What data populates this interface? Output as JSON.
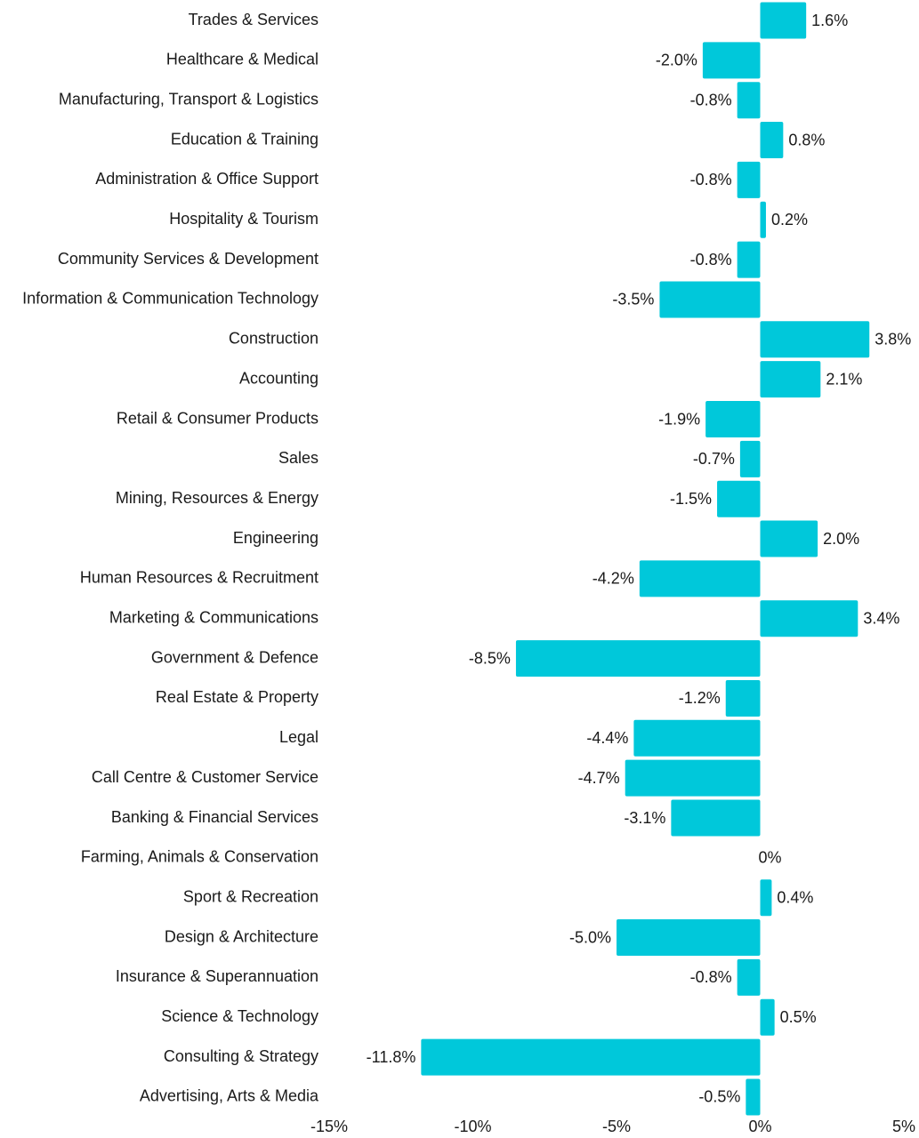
{
  "chart_data": {
    "type": "bar",
    "orientation": "horizontal",
    "title": "",
    "xlabel": "",
    "ylabel": "",
    "xlim": [
      -15,
      5
    ],
    "grid": false,
    "legend": "none",
    "bar_color": "#00C8DA",
    "value_suffix": "%",
    "categories": [
      "Trades & Services",
      "Healthcare & Medical",
      "Manufacturing, Transport & Logistics",
      "Education & Training",
      "Administration & Office Support",
      "Hospitality & Tourism",
      "Community Services & Development",
      "Information & Communication Technology",
      "Construction",
      "Accounting",
      "Retail & Consumer Products",
      "Sales",
      "Mining, Resources & Energy",
      "Engineering",
      "Human Resources & Recruitment",
      "Marketing & Communications",
      "Government & Defence",
      "Real Estate & Property",
      "Legal",
      "Call Centre & Customer Service",
      "Banking & Financial Services",
      "Farming, Animals & Conservation",
      "Sport & Recreation",
      "Design & Architecture",
      "Insurance & Superannuation",
      "Science & Technology",
      "Consulting & Strategy",
      "Advertising, Arts & Media"
    ],
    "values": [
      1.6,
      -2.0,
      -0.8,
      0.8,
      -0.8,
      0.2,
      -0.8,
      -3.5,
      3.8,
      2.1,
      -1.9,
      -0.7,
      -1.5,
      2.0,
      -4.2,
      3.4,
      -8.5,
      -1.2,
      -4.4,
      -4.7,
      -3.1,
      0,
      0.4,
      -5.0,
      -0.8,
      0.5,
      -11.8,
      -0.5
    ],
    "data_labels": [
      "1.6%",
      "-2.0%",
      "-0.8%",
      "0.8%",
      "-0.8%",
      "0.2%",
      "-0.8%",
      "-3.5%",
      "3.8%",
      "2.1%",
      "-1.9%",
      "-0.7%",
      "-1.5%",
      "2.0%",
      "-4.2%",
      "3.4%",
      "-8.5%",
      "-1.2%",
      "-4.4%",
      "-4.7%",
      "-3.1%",
      "0%",
      "0.4%",
      "-5.0%",
      "-0.8%",
      "0.5%",
      "-11.8%",
      "-0.5%"
    ],
    "x_ticks": [
      -15,
      -10,
      -5,
      0,
      5
    ],
    "x_tick_labels": [
      "-15%",
      "-10%",
      "-5%",
      "0%",
      "5%"
    ]
  }
}
